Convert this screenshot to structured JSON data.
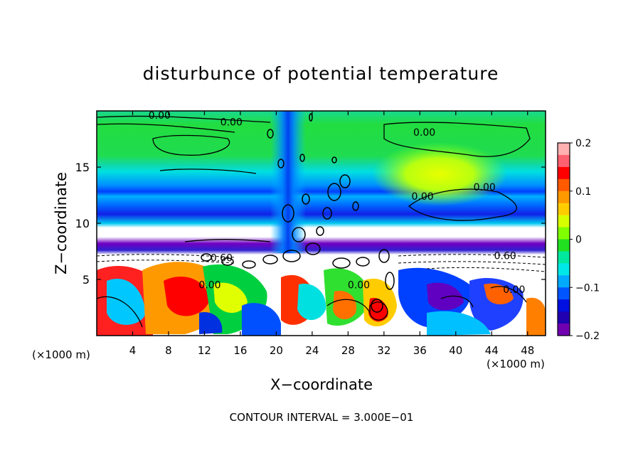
{
  "chart_data": {
    "type": "heatmap",
    "title": "disturbunce of potential temperature",
    "xlabel": "X−coordinate",
    "ylabel": "Z−coordinate",
    "x_unit": "(×1000 m)",
    "x_unit_right": "(×1000 m)",
    "xlim": [
      0,
      50
    ],
    "ylim": [
      0,
      20
    ],
    "x_ticks": [
      4,
      8,
      12,
      16,
      20,
      24,
      28,
      32,
      36,
      40,
      44,
      48
    ],
    "y_ticks": [
      5,
      10,
      15
    ],
    "colorbar": {
      "range": [
        -0.2,
        0.2
      ],
      "ticks": [
        0.2,
        0.1,
        0,
        -0.1,
        -0.2
      ],
      "tick_labels": [
        "0.2",
        "0.1",
        "0",
        "−0.1",
        "−0.2"
      ],
      "colors": [
        "#ffb0b0",
        "#ff6070",
        "#ff0000",
        "#ff5a00",
        "#ff9900",
        "#ffcc00",
        "#d8ff00",
        "#7fff00",
        "#20e020",
        "#00e8a0",
        "#00e8e8",
        "#00aaff",
        "#0055ff",
        "#0010e0",
        "#2000b0",
        "#7000b0"
      ]
    },
    "contour_labels": [
      {
        "text": "0.00",
        "x": 7,
        "y": 19.3
      },
      {
        "text": "0.00",
        "x": 15,
        "y": 18.7
      },
      {
        "text": "0.00",
        "x": 36.5,
        "y": 17.8
      },
      {
        "text": "0.00",
        "x": 36.3,
        "y": 12.1
      },
      {
        "text": "0.00",
        "x": 43.2,
        "y": 12.9
      },
      {
        "text": "0.60",
        "x": 45.5,
        "y": 6.8
      },
      {
        "text": "0.00",
        "x": 46.5,
        "y": 3.8
      },
      {
        "text": "0.00",
        "x": 12.6,
        "y": 4.2
      },
      {
        "text": "0.60",
        "x": 13.9,
        "y": 6.6
      },
      {
        "text": "0.00",
        "x": 29.2,
        "y": 4.2
      }
    ],
    "grid": false,
    "legend": "colorbar-right",
    "footer": "CONTOUR INTERVAL = 3.000E−01"
  }
}
